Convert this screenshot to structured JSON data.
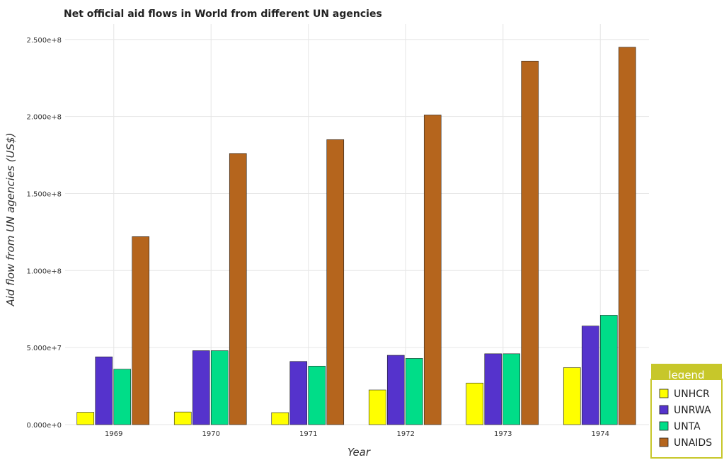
{
  "chart_data": {
    "type": "bar",
    "title": "Net official aid flows in World from different UN agencies",
    "xlabel": "Year",
    "ylabel": "Aid flow from UN agencies (US$)",
    "categories": [
      "1969",
      "1970",
      "1971",
      "1972",
      "1973",
      "1974"
    ],
    "series": [
      {
        "name": "UNHCR",
        "color": "#ffff00",
        "values": [
          8000000,
          8200000,
          7800000,
          22500000,
          27000000,
          37000000
        ]
      },
      {
        "name": "UNRWA",
        "color": "#5533cc",
        "values": [
          44000000,
          48000000,
          41000000,
          45000000,
          46000000,
          64000000
        ]
      },
      {
        "name": "UNTA",
        "color": "#00dd88",
        "values": [
          36000000,
          48000000,
          38000000,
          43000000,
          46000000,
          71000000
        ]
      },
      {
        "name": "UNAIDS",
        "color": "#b5651d",
        "values": [
          122000000,
          176000000,
          185000000,
          201000000,
          236000000,
          245000000
        ]
      }
    ],
    "ylim": [
      0,
      260000000
    ],
    "yticks": [
      0,
      50000000,
      100000000,
      150000000,
      200000000,
      250000000
    ],
    "ytick_labels": [
      "0.000e+0",
      "5.000e+7",
      "1.000e+8",
      "1.500e+8",
      "2.000e+8",
      "2.500e+8"
    ],
    "grid": true,
    "legend": {
      "title": "legend",
      "position": "bottom-right"
    }
  }
}
